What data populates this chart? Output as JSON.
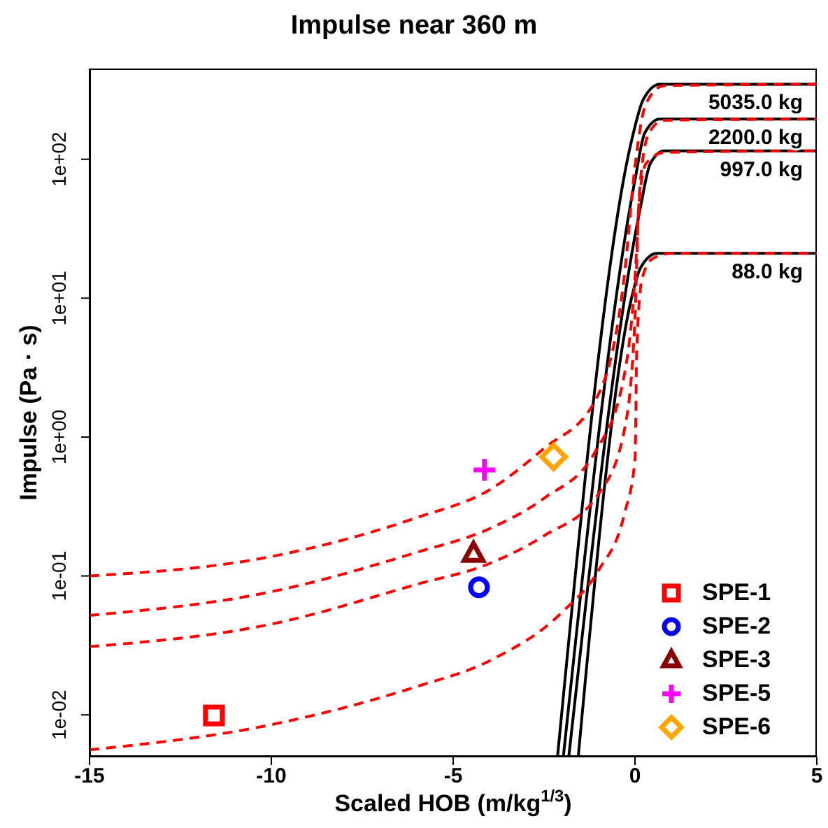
{
  "chart_data": {
    "type": "line",
    "title": "Impulse near 360 m",
    "xlabel": "Scaled HOB (m/kg$^{1/3}$)",
    "ylabel": "Impulse (Pa · s)",
    "xlim": [
      -15,
      5
    ],
    "xticks": [
      -15,
      -10,
      -5,
      0,
      5
    ],
    "ylim": [
      0.005,
      450
    ],
    "yticks": [
      {
        "value": 0.01,
        "label": "1e-02"
      },
      {
        "value": 0.1,
        "label": "1e-01"
      },
      {
        "value": 1,
        "label": "1e+00"
      },
      {
        "value": 10,
        "label": "1e+01"
      },
      {
        "value": 100,
        "label": "1e+02"
      }
    ],
    "log": "y",
    "grid": false,
    "legend": "bottom right",
    "series": [
      {
        "name": "5035.0 kg",
        "color": "#000000",
        "line_style": "solid",
        "marker": "none",
        "x": [
          -2.13,
          -0.08,
          0.23,
          0.68,
          5
        ],
        "values": [
          0.005,
          141,
          270,
          347,
          347
        ]
      },
      {
        "name": "2200.0 kg",
        "color": "#000000",
        "line_style": "solid",
        "marker": "none",
        "x": [
          -1.97,
          0,
          0.27,
          0.68,
          5
        ],
        "values": [
          0.005,
          71,
          155,
          195,
          195
        ]
      },
      {
        "name": "997.0 kg",
        "color": "#000000",
        "line_style": "solid",
        "marker": "none",
        "x": [
          -1.82,
          0.15,
          0.42,
          0.8,
          5
        ],
        "values": [
          0.005,
          45,
          93,
          115,
          115
        ]
      },
      {
        "name": "88.0 kg",
        "color": "#000000",
        "line_style": "solid",
        "marker": "none",
        "x": [
          -1.56,
          -0.08,
          0.15,
          0.61,
          5
        ],
        "values": [
          0.005,
          10.4,
          16.5,
          21,
          21
        ]
      },
      {
        "type": "line",
        "color": "#ff0000",
        "line_style": "dashed",
        "marker": "none",
        "x": [
          -15,
          -10,
          -6,
          -4,
          -2.5,
          -1.1,
          -0.3,
          0,
          0.3,
          0.8,
          5
        ],
        "values": [
          0.1,
          0.138,
          0.263,
          0.417,
          0.83,
          1.82,
          14,
          89,
          251,
          339,
          347
        ]
      },
      {
        "type": "line",
        "color": "#ff0000",
        "line_style": "dashed",
        "marker": "none",
        "x": [
          -15,
          -10,
          -6,
          -4,
          -2.5,
          -1.1,
          -0.3,
          0,
          0.15,
          0.4,
          0.8,
          5
        ],
        "values": [
          0.052,
          0.077,
          0.148,
          0.219,
          0.363,
          0.78,
          2.75,
          14,
          71,
          158,
          191,
          195
        ]
      },
      {
        "type": "line",
        "color": "#ff0000",
        "line_style": "dashed",
        "marker": "none",
        "x": [
          -15,
          -10,
          -6,
          -4,
          -2.5,
          -1,
          -0.3,
          0,
          0.1,
          0.3,
          0.8,
          5
        ],
        "values": [
          0.031,
          0.045,
          0.087,
          0.123,
          0.195,
          0.39,
          1.1,
          7.1,
          45,
          93,
          112,
          115
        ]
      },
      {
        "type": "line",
        "color": "#ff0000",
        "line_style": "dashed",
        "marker": "none",
        "x": [
          -15,
          -10,
          -6,
          -4,
          -2,
          -1,
          -0.3,
          0,
          0.05,
          0.2,
          0.5,
          1,
          5
        ],
        "values": [
          0.0056,
          0.0085,
          0.016,
          0.0245,
          0.055,
          0.11,
          0.275,
          0.69,
          4.4,
          14,
          19.4,
          21,
          21
        ]
      },
      {
        "type": "scatter",
        "name": "SPE-1",
        "color": "#ff0000",
        "marker": "square",
        "x": [
          -11.58
        ],
        "values": [
          0.0099
        ]
      },
      {
        "type": "scatter",
        "name": "SPE-2",
        "color": "#0000ff",
        "marker": "circle",
        "x": [
          -4.29
        ],
        "values": [
          0.083
        ]
      },
      {
        "type": "scatter",
        "name": "SPE-3",
        "color": "#8b0000",
        "marker": "triangle",
        "x": [
          -4.44
        ],
        "values": [
          0.145
        ]
      },
      {
        "type": "scatter",
        "name": "SPE-5",
        "color": "#ff00ff",
        "marker": "cross",
        "x": [
          -4.14
        ],
        "values": [
          0.58
        ]
      },
      {
        "type": "scatter",
        "name": "SPE-6",
        "color": "#ffa500",
        "marker": "diamond",
        "x": [
          -2.24
        ],
        "values": [
          0.72
        ]
      }
    ]
  }
}
